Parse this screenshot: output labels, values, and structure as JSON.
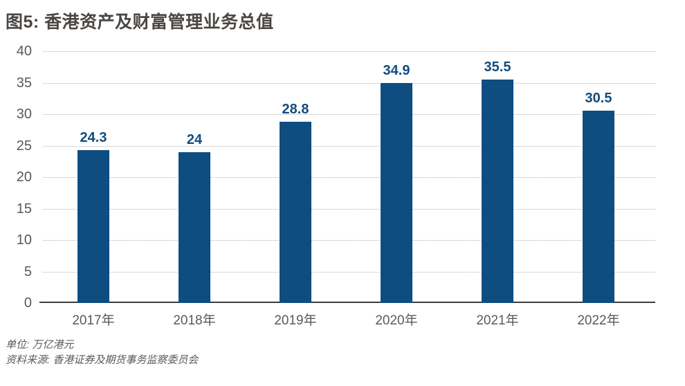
{
  "chart_data": {
    "type": "bar",
    "title": "图5: 香港资产及财富管理业务总值",
    "categories": [
      "2017年",
      "2018年",
      "2019年",
      "2020年",
      "2021年",
      "2022年"
    ],
    "values": [
      24.3,
      24,
      28.8,
      34.9,
      35.5,
      30.5
    ],
    "value_labels": [
      "24.3",
      "24",
      "28.8",
      "34.9",
      "35.5",
      "30.5"
    ],
    "xlabel": "",
    "ylabel": "",
    "ylim": [
      0,
      40
    ],
    "yticks": [
      0,
      5,
      10,
      15,
      20,
      25,
      30,
      35,
      40
    ],
    "grid": "horizontal-dotted",
    "legend": "none",
    "bar_color": "#0e4d80",
    "value_label_color": "#114c7e",
    "axis_label_color": "#595959",
    "title_color": "#4a4643"
  },
  "footer": {
    "unit": "单位: 万亿港元",
    "source": "资料来源: 香港证券及期货事务监察委员会"
  }
}
